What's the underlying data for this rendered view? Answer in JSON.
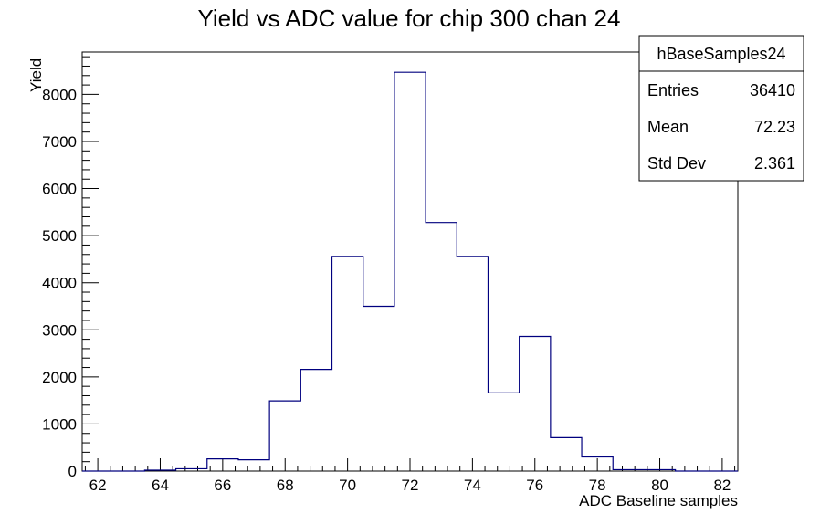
{
  "chart_data": {
    "type": "bar",
    "title": "Yield vs ADC value for chip 300 chan 24",
    "xlabel": "ADC Baseline samples",
    "ylabel": "Yield",
    "xlim": [
      61.5,
      82.5
    ],
    "ylim": [
      0,
      8900
    ],
    "x_ticks": [
      62,
      64,
      66,
      68,
      70,
      72,
      74,
      76,
      78,
      80,
      82
    ],
    "y_ticks": [
      0,
      1000,
      2000,
      3000,
      4000,
      5000,
      6000,
      7000,
      8000
    ],
    "bin_width": 1,
    "bins": [
      {
        "center": 62,
        "value": 0
      },
      {
        "center": 63,
        "value": 0
      },
      {
        "center": 64,
        "value": 20
      },
      {
        "center": 65,
        "value": 50
      },
      {
        "center": 66,
        "value": 260
      },
      {
        "center": 67,
        "value": 240
      },
      {
        "center": 68,
        "value": 1490
      },
      {
        "center": 69,
        "value": 2160
      },
      {
        "center": 70,
        "value": 4560
      },
      {
        "center": 71,
        "value": 3500
      },
      {
        "center": 72,
        "value": 8470
      },
      {
        "center": 73,
        "value": 5280
      },
      {
        "center": 74,
        "value": 4560
      },
      {
        "center": 75,
        "value": 1660
      },
      {
        "center": 76,
        "value": 2860
      },
      {
        "center": 77,
        "value": 710
      },
      {
        "center": 78,
        "value": 300
      },
      {
        "center": 79,
        "value": 30
      },
      {
        "center": 80,
        "value": 30
      },
      {
        "center": 81,
        "value": 0
      },
      {
        "center": 82,
        "value": 0
      }
    ],
    "line_color": "#00007f",
    "grid": false,
    "legend": "none",
    "stats_box": {
      "name": "hBaseSamples24",
      "placement": "top-right",
      "rows": [
        {
          "label": "Entries",
          "value": "36410"
        },
        {
          "label": "Mean",
          "value": "72.23"
        },
        {
          "label": "Std Dev",
          "value": "2.361"
        }
      ]
    }
  }
}
